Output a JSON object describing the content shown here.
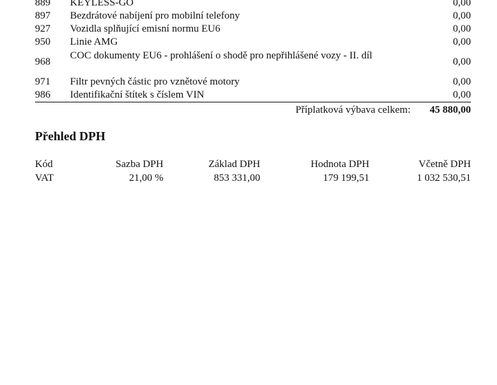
{
  "items": [
    {
      "code": "889",
      "desc": "KEYLESS-GO",
      "price": "0,00"
    },
    {
      "code": "897",
      "desc": "Bezdrátové nabíjení pro mobilní telefony",
      "price": "0,00"
    },
    {
      "code": "927",
      "desc": "Vozidla splňující emisní normu EU6",
      "price": "0,00"
    },
    {
      "code": "950",
      "desc": "Linie AMG",
      "price": "0,00"
    },
    {
      "code": "968",
      "desc": "COC dokumenty EU6 - prohlášení o shodě pro nepřihlášené vozy - II. díl",
      "price": "0,00"
    },
    {
      "code": "971",
      "desc": "Filtr pevných částic pro vznětové motory",
      "price": "0,00"
    },
    {
      "code": "986",
      "desc": "Identifikační štítek s číslem VIN",
      "price": "0,00"
    }
  ],
  "total": {
    "label": "Příplatková výbava celkem:",
    "value": "45 880,00"
  },
  "vat": {
    "title": "Přehled DPH",
    "headers": [
      "Kód",
      "Sazba DPH",
      "Základ DPH",
      "Hodnota DPH",
      "Včetně DPH"
    ],
    "row": [
      "VAT",
      "21,00 %",
      "853 331,00",
      "179 199,51",
      "1 032 530,51"
    ]
  }
}
